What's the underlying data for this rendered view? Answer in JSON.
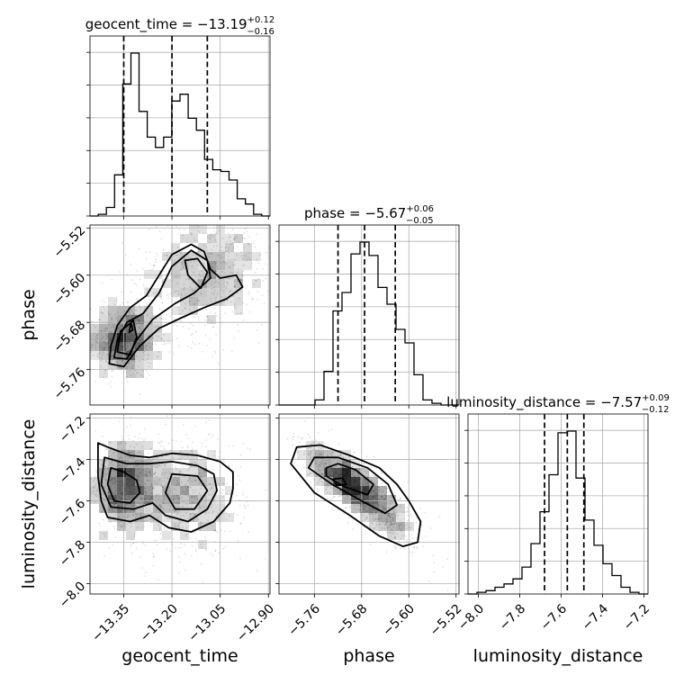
{
  "chart_data": {
    "type": "corner",
    "grid": true,
    "parameters": [
      {
        "name": "geocent_time",
        "range": [
          -13.455,
          -12.895
        ],
        "ticks": [
          -13.35,
          -13.2,
          -13.05,
          -12.9
        ],
        "tick_labels": [
          "−13.35",
          "−13.20",
          "−13.05",
          "−12.90"
        ],
        "title": {
          "prefix": "geocent_time = −13.19",
          "plus": "+0.12",
          "minus": "−0.16"
        },
        "quantiles": [
          -13.35,
          -13.2,
          -13.09
        ],
        "histogram": [
          0,
          0.01,
          0.05,
          0.24,
          0.77,
          0.95,
          0.61,
          0.46,
          0.4,
          0.46,
          0.67,
          0.71,
          0.57,
          0.5,
          0.33,
          0.27,
          0.26,
          0.21,
          0.1,
          0.07,
          0.01,
          0
        ]
      },
      {
        "name": "phase",
        "range": [
          -5.82,
          -5.515
        ],
        "ticks": [
          -5.76,
          -5.68,
          -5.6,
          -5.52
        ],
        "tick_labels": [
          "−5.76",
          "−5.68",
          "−5.60",
          "−5.52"
        ],
        "title": {
          "prefix": "phase = −5.67",
          "plus": "+0.06",
          "minus": "−0.05"
        },
        "quantiles": [
          -5.72,
          -5.675,
          -5.623
        ],
        "histogram": [
          0,
          0,
          0,
          0,
          0.03,
          0.2,
          0.56,
          0.67,
          0.9,
          0.97,
          0.89,
          0.7,
          0.6,
          0.45,
          0.37,
          0.18,
          0.03,
          0.01,
          0,
          0
        ]
      },
      {
        "name": "luminosity_distance",
        "range": [
          -8.05,
          -7.18
        ],
        "ticks": [
          -8.0,
          -7.8,
          -7.6,
          -7.4,
          -7.2
        ],
        "tick_labels": [
          "−8.0",
          "−7.8",
          "−7.6",
          "−7.4",
          "−7.2"
        ],
        "title": {
          "prefix": "luminosity_distance = −7.57",
          "plus": "+0.09",
          "minus": "−0.12"
        },
        "quantiles": [
          -7.68,
          -7.57,
          -7.49
        ],
        "histogram": [
          0,
          0.01,
          0.02,
          0.04,
          0.06,
          0.09,
          0.16,
          0.3,
          0.49,
          0.71,
          0.96,
          0.97,
          0.69,
          0.44,
          0.29,
          0.18,
          0.11,
          0.04,
          0.01,
          0
        ]
      }
    ],
    "pairs": [
      {
        "x": "geocent_time",
        "y": "phase",
        "peaks": [
          {
            "x": -13.35,
            "y": -5.71,
            "sx": 0.035,
            "sy": 0.02,
            "w": 1.0
          },
          {
            "x": -13.13,
            "y": -5.6,
            "sx": 0.06,
            "sy": 0.035,
            "w": 0.75
          },
          {
            "x": -13.02,
            "y": -5.59,
            "sx": 0.05,
            "sy": 0.03,
            "w": 0.35
          }
        ],
        "levels": [
          [
            [
              -13.395,
              -5.75
            ],
            [
              -13.39,
              -5.72
            ],
            [
              -13.37,
              -5.685
            ],
            [
              -13.33,
              -5.655
            ],
            [
              -13.28,
              -5.635
            ],
            [
              -13.24,
              -5.6
            ],
            [
              -13.2,
              -5.565
            ],
            [
              -13.14,
              -5.548
            ],
            [
              -13.1,
              -5.56
            ],
            [
              -13.08,
              -5.59
            ],
            [
              -13.05,
              -5.605
            ],
            [
              -13.0,
              -5.6
            ],
            [
              -12.98,
              -5.62
            ],
            [
              -13.03,
              -5.64
            ],
            [
              -13.1,
              -5.655
            ],
            [
              -13.17,
              -5.672
            ],
            [
              -13.24,
              -5.69
            ],
            [
              -13.3,
              -5.72
            ],
            [
              -13.35,
              -5.755
            ]
          ],
          [
            [
              -13.38,
              -5.74
            ],
            [
              -13.37,
              -5.71
            ],
            [
              -13.34,
              -5.68
            ],
            [
              -13.29,
              -5.665
            ],
            [
              -13.24,
              -5.63
            ],
            [
              -13.2,
              -5.585
            ],
            [
              -13.14,
              -5.558
            ],
            [
              -13.09,
              -5.575
            ],
            [
              -13.08,
              -5.605
            ],
            [
              -13.13,
              -5.63
            ],
            [
              -13.19,
              -5.648
            ],
            [
              -13.26,
              -5.675
            ],
            [
              -13.31,
              -5.71
            ],
            [
              -13.34,
              -5.742
            ]
          ],
          [
            [
              -13.37,
              -5.73
            ],
            [
              -13.36,
              -5.695
            ],
            [
              -13.32,
              -5.677
            ],
            [
              -13.31,
              -5.705
            ],
            [
              -13.33,
              -5.735
            ]
          ],
          [
            [
              -13.16,
              -5.575
            ],
            [
              -13.12,
              -5.572
            ],
            [
              -13.09,
              -5.595
            ],
            [
              -13.11,
              -5.622
            ],
            [
              -13.15,
              -5.6
            ]
          ],
          [
            [
              -13.333,
              -5.697
            ],
            [
              -13.328,
              -5.68
            ],
            [
              -13.322,
              -5.693
            ]
          ]
        ]
      },
      {
        "x": "geocent_time",
        "y": "luminosity_distance",
        "peaks": [
          {
            "x": -13.35,
            "y": -7.53,
            "sx": 0.035,
            "sy": 0.07,
            "w": 1.0
          },
          {
            "x": -13.16,
            "y": -7.58,
            "sx": 0.06,
            "sy": 0.09,
            "w": 0.9
          }
        ],
        "levels": [
          [
            [
              -13.43,
              -7.32
            ],
            [
              -13.4,
              -7.34
            ],
            [
              -13.33,
              -7.38
            ],
            [
              -13.27,
              -7.39
            ],
            [
              -13.2,
              -7.37
            ],
            [
              -13.12,
              -7.38
            ],
            [
              -13.05,
              -7.41
            ],
            [
              -13.01,
              -7.46
            ],
            [
              -13.01,
              -7.54
            ],
            [
              -13.02,
              -7.61
            ],
            [
              -13.07,
              -7.7
            ],
            [
              -13.14,
              -7.75
            ],
            [
              -13.21,
              -7.73
            ],
            [
              -13.27,
              -7.67
            ],
            [
              -13.33,
              -7.7
            ],
            [
              -13.4,
              -7.68
            ],
            [
              -13.42,
              -7.6
            ],
            [
              -13.43,
              -7.48
            ]
          ],
          [
            [
              -13.41,
              -7.39
            ],
            [
              -13.34,
              -7.42
            ],
            [
              -13.27,
              -7.42
            ],
            [
              -13.2,
              -7.41
            ],
            [
              -13.12,
              -7.43
            ],
            [
              -13.07,
              -7.47
            ],
            [
              -13.06,
              -7.55
            ],
            [
              -13.09,
              -7.64
            ],
            [
              -13.15,
              -7.7
            ],
            [
              -13.22,
              -7.67
            ],
            [
              -13.26,
              -7.61
            ],
            [
              -13.32,
              -7.64
            ],
            [
              -13.39,
              -7.63
            ],
            [
              -13.42,
              -7.52
            ]
          ],
          [
            [
              -13.39,
              -7.44
            ],
            [
              -13.35,
              -7.46
            ],
            [
              -13.31,
              -7.5
            ],
            [
              -13.3,
              -7.56
            ],
            [
              -13.33,
              -7.61
            ],
            [
              -13.38,
              -7.6
            ],
            [
              -13.4,
              -7.52
            ]
          ],
          [
            [
              -13.2,
              -7.47
            ],
            [
              -13.12,
              -7.48
            ],
            [
              -13.09,
              -7.55
            ],
            [
              -13.13,
              -7.64
            ],
            [
              -13.19,
              -7.64
            ],
            [
              -13.22,
              -7.56
            ]
          ]
        ]
      },
      {
        "x": "phase",
        "y": "luminosity_distance",
        "peaks": [
          {
            "x": -5.7,
            "y": -7.52,
            "sx": 0.025,
            "sy": 0.06,
            "w": 1.0,
            "rho": -0.8
          },
          {
            "x": -5.66,
            "y": -7.6,
            "sx": 0.03,
            "sy": 0.08,
            "w": 0.5,
            "rho": -0.8
          }
        ],
        "levels": [
          [
            [
              -5.8,
              -7.42
            ],
            [
              -5.79,
              -7.34
            ],
            [
              -5.75,
              -7.33
            ],
            [
              -5.7,
              -7.38
            ],
            [
              -5.65,
              -7.44
            ],
            [
              -5.62,
              -7.52
            ],
            [
              -5.6,
              -7.6
            ],
            [
              -5.58,
              -7.7
            ],
            [
              -5.585,
              -7.8
            ],
            [
              -5.61,
              -7.82
            ],
            [
              -5.65,
              -7.77
            ],
            [
              -5.7,
              -7.67
            ],
            [
              -5.76,
              -7.56
            ]
          ],
          [
            [
              -5.77,
              -7.44
            ],
            [
              -5.76,
              -7.39
            ],
            [
              -5.72,
              -7.39
            ],
            [
              -5.67,
              -7.44
            ],
            [
              -5.635,
              -7.52
            ],
            [
              -5.62,
              -7.62
            ],
            [
              -5.64,
              -7.66
            ],
            [
              -5.68,
              -7.6
            ],
            [
              -5.73,
              -7.52
            ]
          ],
          [
            [
              -5.74,
              -7.44
            ],
            [
              -5.72,
              -7.42
            ],
            [
              -5.69,
              -7.45
            ],
            [
              -5.66,
              -7.52
            ],
            [
              -5.67,
              -7.57
            ],
            [
              -5.71,
              -7.53
            ],
            [
              -5.74,
              -7.48
            ]
          ],
          [
            [
              -5.728,
              -7.495
            ],
            [
              -5.712,
              -7.49
            ],
            [
              -5.706,
              -7.52
            ],
            [
              -5.722,
              -7.525
            ]
          ]
        ]
      }
    ]
  }
}
